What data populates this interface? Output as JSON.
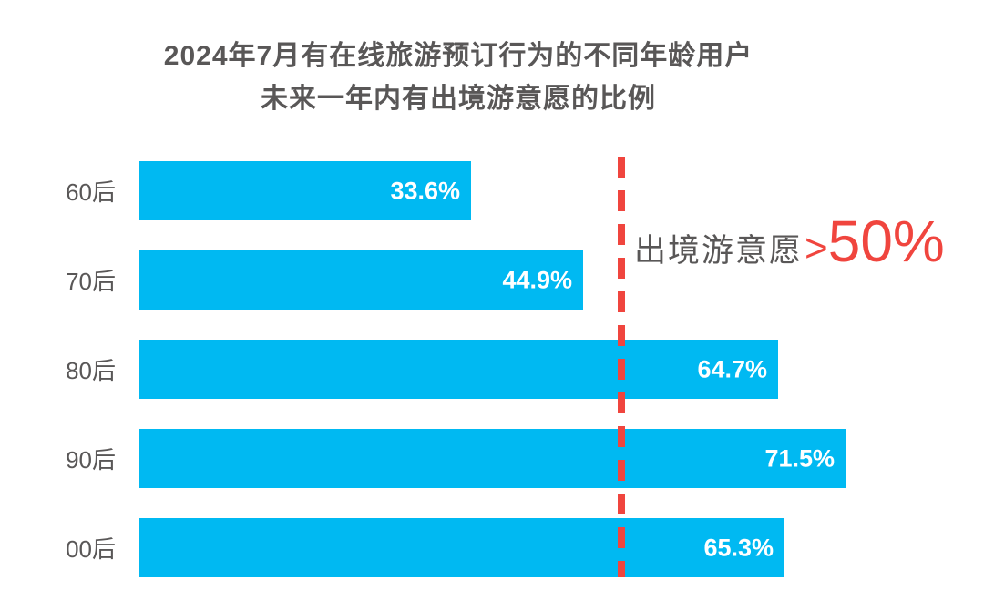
{
  "chart_data": {
    "type": "bar",
    "orientation": "horizontal",
    "title_line1": "2024年7月有在线旅游预订行为的不同年龄用户",
    "title_line2": "未来一年内有出境游意愿的比例",
    "categories": [
      "60后",
      "70后",
      "80后",
      "90后",
      "00后"
    ],
    "values": [
      33.6,
      44.9,
      64.7,
      71.5,
      65.3
    ],
    "value_labels": [
      "33.6%",
      "44.9%",
      "64.7%",
      "71.5%",
      "65.3%"
    ],
    "xlim": [
      0,
      85
    ],
    "grid": false,
    "legend": "none",
    "bar_color": "#00B9F2",
    "reference_line": {
      "value": 50,
      "style": "dashed",
      "color": "#F0453E"
    },
    "annotation": {
      "label": "出境游意愿",
      "operator": ">",
      "value": "50%",
      "label_color": "#595757",
      "value_color": "#F0453E"
    }
  },
  "colors": {
    "bar": "#00B9F2",
    "accent_red": "#F0453E",
    "text_gray": "#595757",
    "value_text": "#FFFFFF",
    "background": "#FFFFFF"
  }
}
